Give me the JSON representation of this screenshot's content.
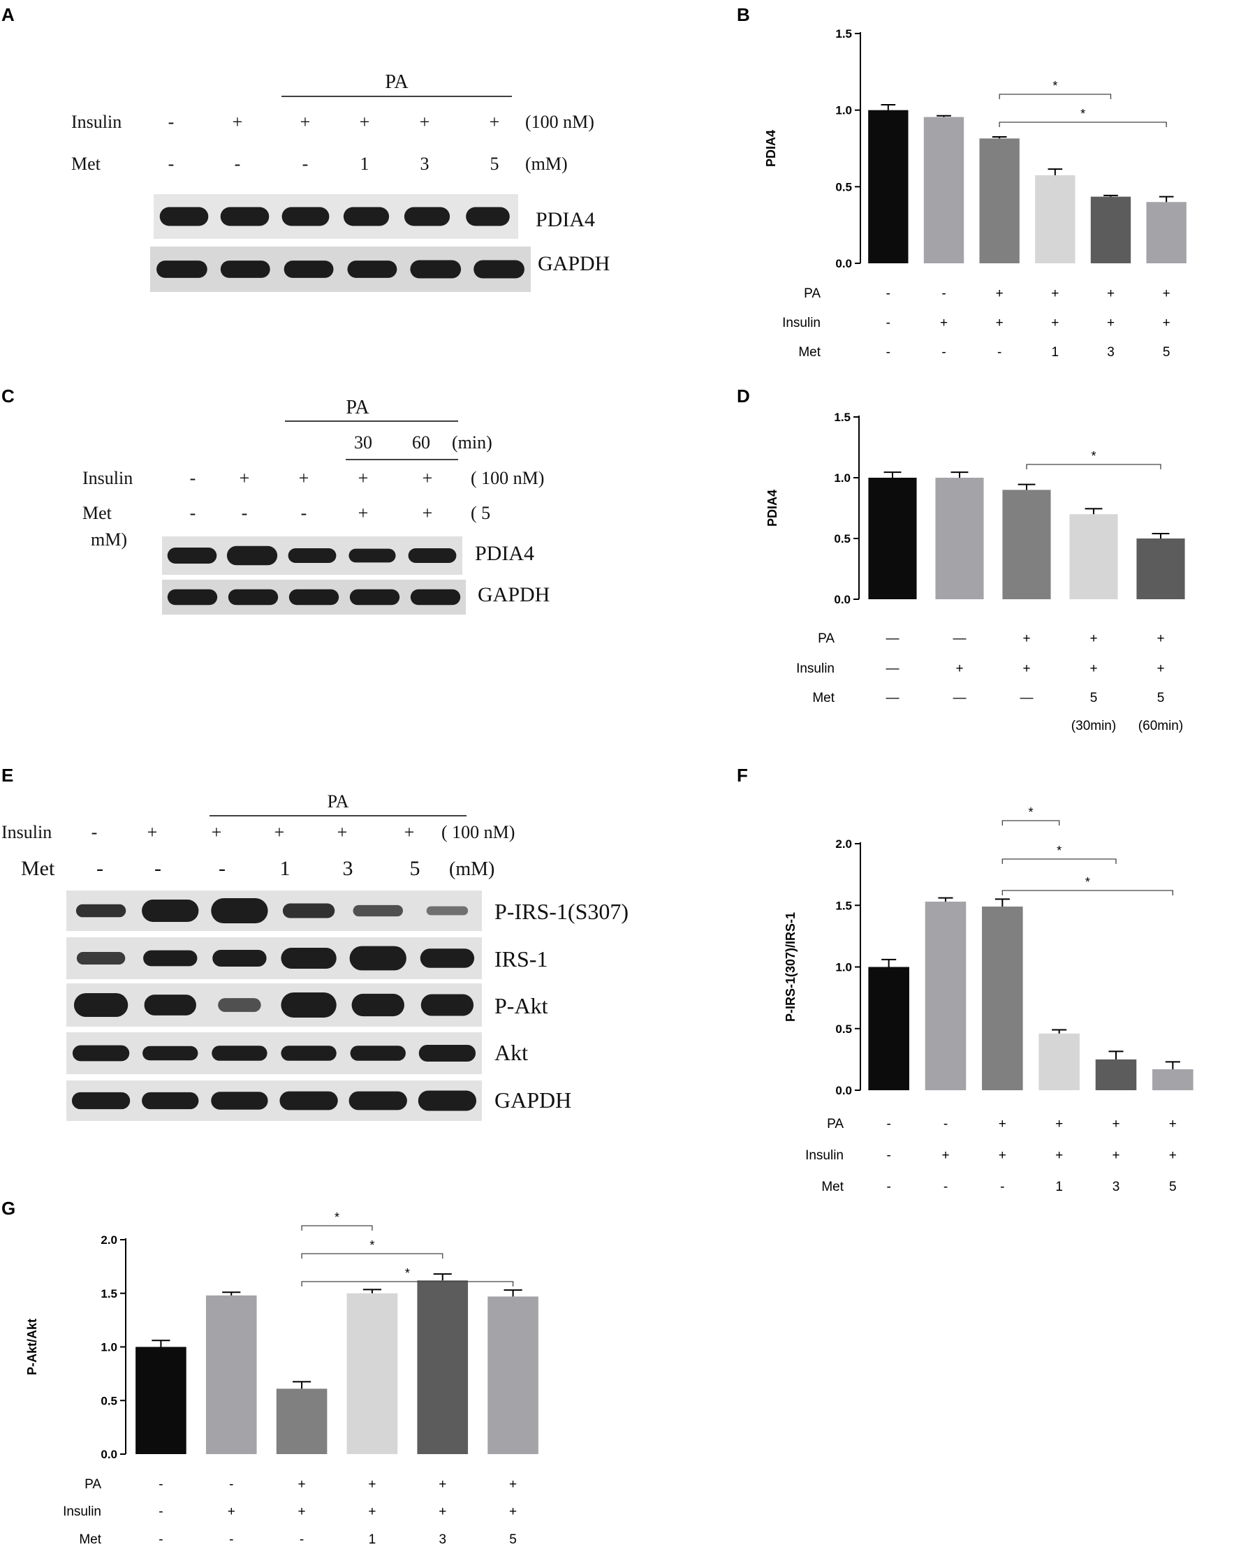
{
  "panel_labels": [
    "A",
    "B",
    "C",
    "D",
    "E",
    "F",
    "G"
  ],
  "blot_a": {
    "header": "PA",
    "rows": [
      {
        "label": "Insulin",
        "values": [
          "-",
          "+",
          "+",
          "+",
          "+",
          "+"
        ],
        "unit": "(100 nM)"
      },
      {
        "label": "Met",
        "values": [
          "-",
          "-",
          "-",
          "1",
          "3",
          "5"
        ],
        "unit": "(mM)"
      }
    ],
    "bands": [
      "PDIA4",
      "GAPDH"
    ]
  },
  "blot_c": {
    "header": "PA",
    "time_values": [
      "30",
      "60"
    ],
    "time_unit": "(min)",
    "rows": [
      {
        "label": "Insulin",
        "values": [
          "-",
          "+",
          "+",
          "+",
          "+"
        ],
        "unit": "( 100 nM)"
      },
      {
        "label": "Met",
        "values": [
          "-",
          "-",
          "-",
          "+",
          "+"
        ],
        "unit": "( 5"
      }
    ],
    "unit_wrap": "mM)",
    "bands": [
      "PDIA4",
      "GAPDH"
    ]
  },
  "blot_e": {
    "header": "PA",
    "rows": [
      {
        "label": "Insulin",
        "values": [
          "-",
          "+",
          "+",
          "+",
          "+",
          "+"
        ],
        "unit": "( 100 nM)"
      },
      {
        "label": "Met",
        "values": [
          "-",
          "-",
          "-",
          "1",
          "3",
          "5"
        ],
        "unit": "(mM)"
      }
    ],
    "bands": [
      "P-IRS-1(S307)",
      "IRS-1",
      "P-Akt",
      "Akt",
      "GAPDH"
    ]
  },
  "chart_data": [
    {
      "panel": "B",
      "type": "bar",
      "ylabel": "PDIA4",
      "ylim": [
        0,
        1.5
      ],
      "yticks": [
        "0.0",
        "0.5",
        "1.0",
        "1.5"
      ],
      "values": [
        1.0,
        0.955,
        0.815,
        0.575,
        0.435,
        0.4
      ],
      "errors": [
        0.035,
        0.008,
        0.01,
        0.04,
        0.008,
        0.035
      ],
      "colors": [
        "#0c0c0c",
        "#a3a3a8",
        "#808080",
        "#d6d6d6",
        "#5c5c5c",
        "#a3a3a8"
      ],
      "rows": [
        {
          "label": "PA",
          "values": [
            "-",
            "-",
            "+",
            "+",
            "+",
            "+"
          ]
        },
        {
          "label": "Insulin",
          "values": [
            "-",
            "+",
            "+",
            "+",
            "+",
            "+"
          ]
        },
        {
          "label": "Met",
          "values": [
            "-",
            "-",
            "-",
            "1",
            "3",
            "5"
          ]
        }
      ],
      "significance": [
        {
          "from": 2,
          "to": 4,
          "label": "*"
        },
        {
          "from": 2,
          "to": 5,
          "label": "*"
        }
      ]
    },
    {
      "panel": "D",
      "type": "bar",
      "ylabel": "PDIA4",
      "ylim": [
        0,
        1.5
      ],
      "yticks": [
        "0.0",
        "0.5",
        "1.0",
        "1.5"
      ],
      "values": [
        1.0,
        1.0,
        0.9,
        0.7,
        0.5
      ],
      "errors": [
        0.045,
        0.045,
        0.045,
        0.045,
        0.04
      ],
      "colors": [
        "#0c0c0c",
        "#a3a3a8",
        "#808080",
        "#d6d6d6",
        "#5c5c5c"
      ],
      "rows": [
        {
          "label": "PA",
          "values": [
            "—",
            "—",
            "+",
            "+",
            "+"
          ]
        },
        {
          "label": "Insulin",
          "values": [
            "—",
            "+",
            "+",
            "+",
            "+"
          ]
        },
        {
          "label": "Met",
          "values": [
            "—",
            "—",
            "—",
            "5",
            "5"
          ]
        },
        {
          "label": "",
          "values": [
            "",
            "",
            "",
            "(30min)",
            "(60min)"
          ]
        }
      ],
      "significance": [
        {
          "from": 2,
          "to": 4,
          "label": "*"
        }
      ]
    },
    {
      "panel": "F",
      "type": "bar",
      "ylabel": "P-IRS-1(307)/IRS-1",
      "ylim": [
        0,
        2.0
      ],
      "yticks": [
        "0.0",
        "0.5",
        "1.0",
        "1.5",
        "2.0"
      ],
      "values": [
        1.0,
        1.53,
        1.49,
        0.46,
        0.25,
        0.17
      ],
      "errors": [
        0.06,
        0.03,
        0.06,
        0.03,
        0.065,
        0.06
      ],
      "colors": [
        "#0c0c0c",
        "#a3a3a8",
        "#808080",
        "#d6d6d6",
        "#5c5c5c",
        "#a3a3a8"
      ],
      "rows": [
        {
          "label": "PA",
          "values": [
            "-",
            "-",
            "+",
            "+",
            "+",
            "+"
          ]
        },
        {
          "label": "Insulin",
          "values": [
            "-",
            "+",
            "+",
            "+",
            "+",
            "+"
          ]
        },
        {
          "label": "Met",
          "values": [
            "-",
            "-",
            "-",
            "1",
            "3",
            "5"
          ]
        }
      ],
      "significance": [
        {
          "from": 2,
          "to": 3,
          "label": "*"
        },
        {
          "from": 2,
          "to": 4,
          "label": "*"
        },
        {
          "from": 2,
          "to": 5,
          "label": "*"
        }
      ]
    },
    {
      "panel": "G",
      "type": "bar",
      "ylabel": "P-Akt/Akt",
      "ylim": [
        0,
        2.0
      ],
      "yticks": [
        "0.0",
        "0.5",
        "1.0",
        "1.5",
        "2.0"
      ],
      "values": [
        1.0,
        1.48,
        0.61,
        1.5,
        1.62,
        1.47
      ],
      "errors": [
        0.06,
        0.03,
        0.065,
        0.035,
        0.06,
        0.06
      ],
      "colors": [
        "#0c0c0c",
        "#a3a3a8",
        "#808080",
        "#d6d6d6",
        "#5c5c5c",
        "#a3a3a8"
      ],
      "rows": [
        {
          "label": "PA",
          "values": [
            "-",
            "-",
            "+",
            "+",
            "+",
            "+"
          ]
        },
        {
          "label": "Insulin",
          "values": [
            "-",
            "+",
            "+",
            "+",
            "+",
            "+"
          ]
        },
        {
          "label": "Met",
          "values": [
            "-",
            "-",
            "-",
            "1",
            "3",
            "5"
          ]
        }
      ],
      "significance": [
        {
          "from": 2,
          "to": 3,
          "label": "*"
        },
        {
          "from": 2,
          "to": 4,
          "label": "*"
        },
        {
          "from": 2,
          "to": 5,
          "label": "*"
        }
      ]
    }
  ]
}
